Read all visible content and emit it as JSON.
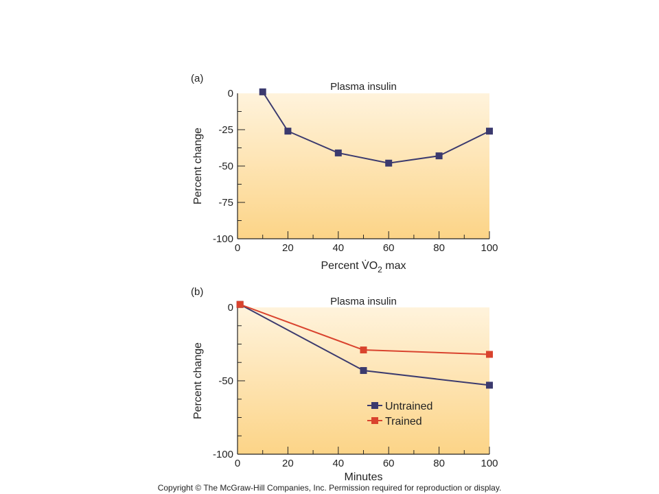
{
  "copyright": "Copyright © The McGraw-Hill Companies, Inc. Permission required for reproduction or display.",
  "colors": {
    "untrained": "#3b3a6e",
    "trained": "#d9432e",
    "bg_top": "#fff3dc",
    "bg_bottom": "#fcd487",
    "axis": "#222222"
  },
  "chart_data": [
    {
      "panel": "(a)",
      "type": "line",
      "title": "Plasma insulin",
      "xlabel": "Percent V̇O",
      "xlabel_sub": "2",
      "xlabel_suffix": " max",
      "ylabel": "Percent change",
      "xlim": [
        0,
        100
      ],
      "ylim": [
        -100,
        0
      ],
      "xticks": [
        0,
        20,
        40,
        60,
        80,
        100
      ],
      "yticks": [
        0,
        -25,
        -50,
        -75,
        -100
      ],
      "xtick_labels": [
        "0",
        "20",
        "40",
        "60",
        "80",
        "100"
      ],
      "ytick_labels": [
        "0",
        "-25",
        "-50",
        "-75",
        "-100"
      ],
      "series": [
        {
          "color_key": "untrained",
          "x": [
            10,
            20,
            40,
            60,
            80,
            100
          ],
          "y": [
            1,
            -26,
            -41,
            -48,
            -43,
            -26
          ]
        }
      ]
    },
    {
      "panel": "(b)",
      "type": "line",
      "title": "Plasma insulin",
      "xlabel": "Minutes",
      "ylabel": "Percent change",
      "xlim": [
        0,
        100
      ],
      "ylim": [
        -100,
        0
      ],
      "xticks": [
        0,
        20,
        40,
        60,
        80,
        100
      ],
      "yticks": [
        0,
        -50,
        -100
      ],
      "xtick_labels": [
        "0",
        "20",
        "40",
        "60",
        "80",
        "100"
      ],
      "ytick_labels": [
        "0",
        "-50",
        "-100"
      ],
      "legend_position": "lower-center",
      "series": [
        {
          "name": "Untrained",
          "color_key": "untrained",
          "x": [
            1,
            50,
            100
          ],
          "y": [
            2,
            -43,
            -53
          ]
        },
        {
          "name": "Trained",
          "color_key": "trained",
          "x": [
            1,
            50,
            100
          ],
          "y": [
            2,
            -29,
            -32
          ]
        }
      ]
    }
  ]
}
